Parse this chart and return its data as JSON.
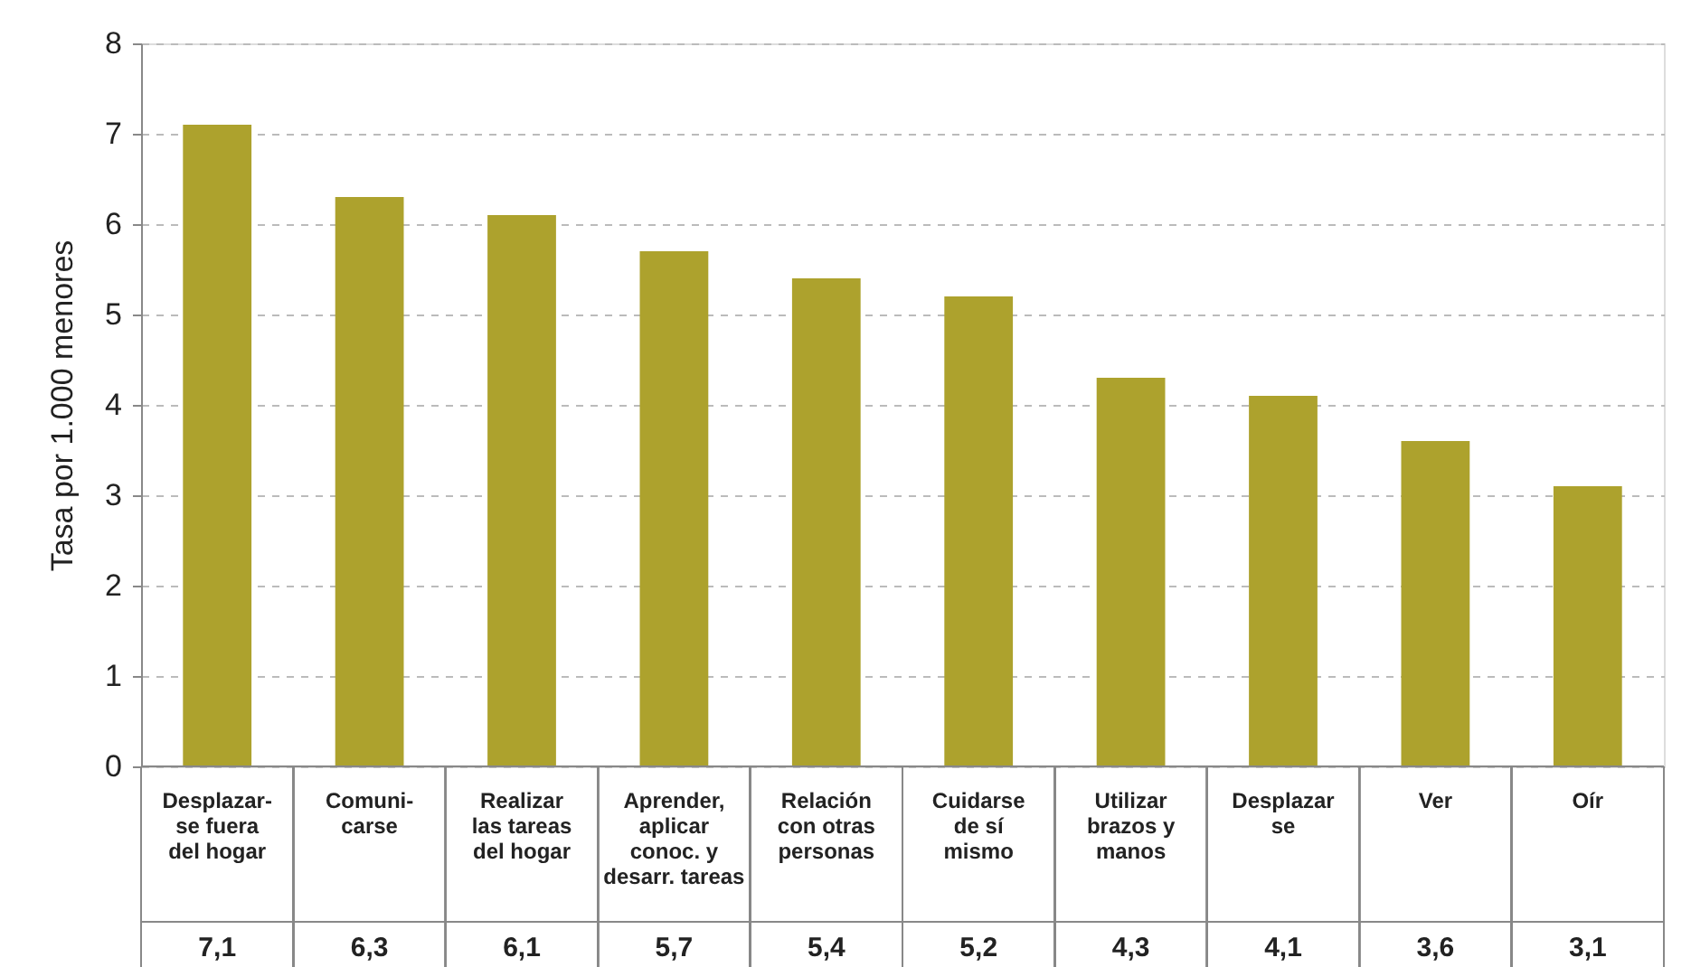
{
  "chart_data": {
    "type": "bar",
    "ylabel": "Tasa por 1.000 menores",
    "categories": [
      "Desplazar-\nse fuera\ndel hogar",
      "Comuni-\ncarse",
      "Realizar\nlas tareas\ndel hogar",
      "Aprender,\naplicar\nconoc. y\ndesarr. tareas",
      "Relación\ncon otras\npersonas",
      "Cuidarse\nde sí\nmismo",
      "Utilizar\nbrazos y\nmanos",
      "Desplazar\nse",
      "Ver",
      "Oír"
    ],
    "values": [
      7.1,
      6.3,
      6.1,
      5.7,
      5.4,
      5.2,
      4.3,
      4.1,
      3.6,
      3.1
    ],
    "value_labels": [
      "7,1",
      "6,3",
      "6,1",
      "5,7",
      "5,4",
      "5,2",
      "4,3",
      "4,1",
      "3,6",
      "3,1"
    ],
    "color": "#ada22d",
    "ylim": [
      0,
      8
    ],
    "yticks": [
      0,
      1,
      2,
      3,
      4,
      5,
      6,
      7,
      8
    ],
    "grid": "y"
  }
}
